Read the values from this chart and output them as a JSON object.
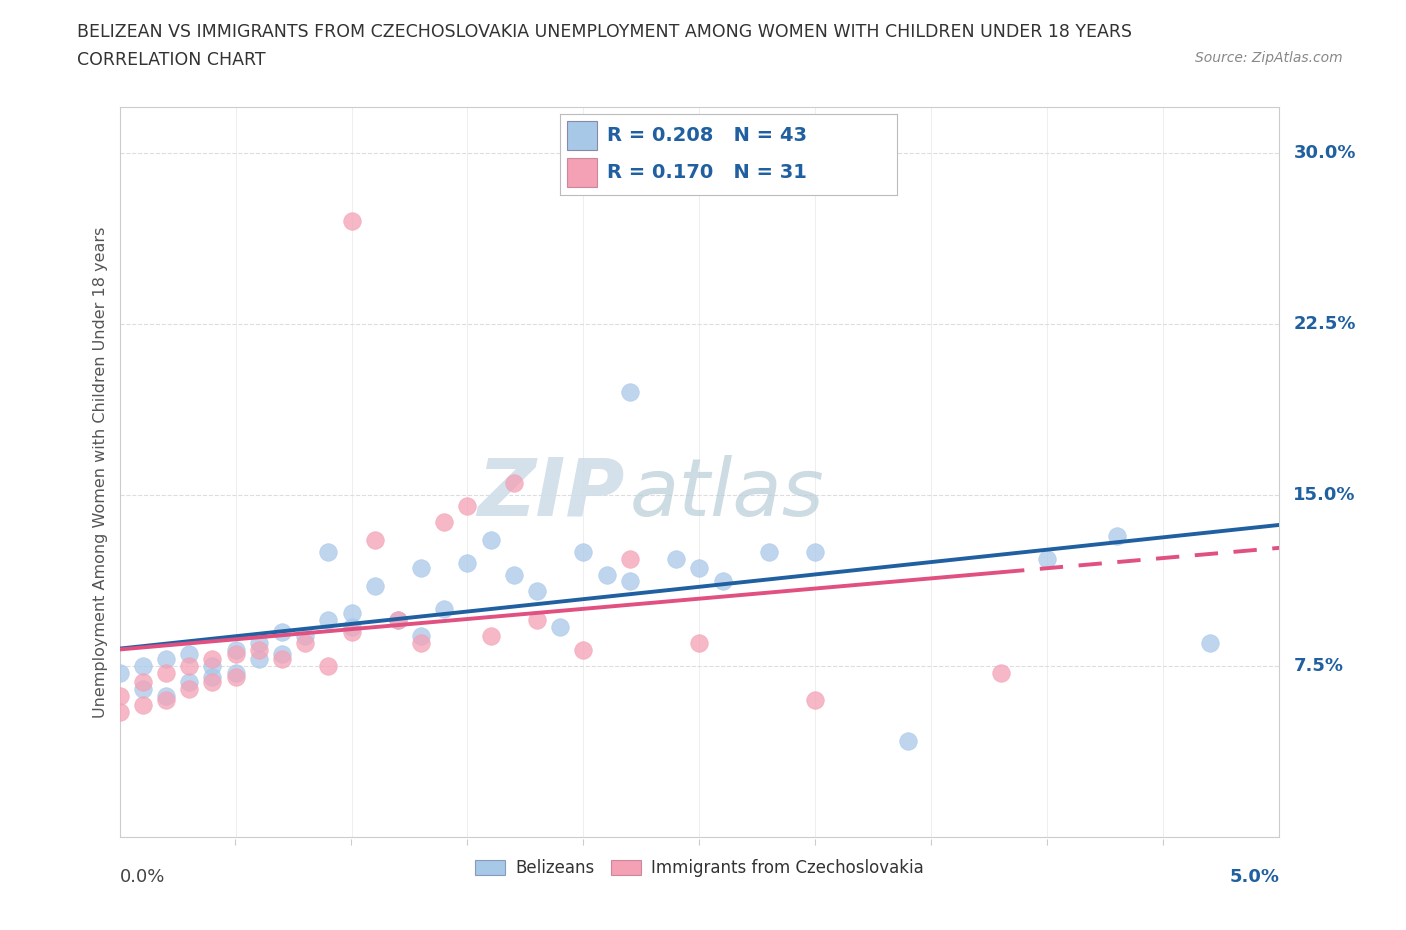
{
  "title_line1": "BELIZEAN VS IMMIGRANTS FROM CZECHOSLOVAKIA UNEMPLOYMENT AMONG WOMEN WITH CHILDREN UNDER 18 YEARS",
  "title_line2": "CORRELATION CHART",
  "source": "Source: ZipAtlas.com",
  "ylabel": "Unemployment Among Women with Children Under 18 years",
  "legend1_label": "Belizeans",
  "legend2_label": "Immigrants from Czechoslovakia",
  "R_blue": 0.208,
  "N_blue": 43,
  "R_pink": 0.17,
  "N_pink": 31,
  "blue_color": "#a8c8e8",
  "pink_color": "#f4a0b5",
  "blue_line_color": "#2060a0",
  "pink_line_color": "#e05080",
  "watermark_color": "#d8e8f0",
  "xlim": [
    0.0,
    0.05
  ],
  "ylim": [
    0.0,
    0.32
  ],
  "yticks": [
    0.0,
    0.075,
    0.15,
    0.225,
    0.3
  ],
  "ytick_labels": [
    "",
    "7.5%",
    "15.0%",
    "22.5%",
    "30.0%"
  ],
  "xtick_left_label": "0.0%",
  "xtick_right_label": "5.0%",
  "blue_x": [
    0.0,
    0.001,
    0.001,
    0.002,
    0.002,
    0.003,
    0.003,
    0.004,
    0.004,
    0.005,
    0.005,
    0.006,
    0.006,
    0.007,
    0.007,
    0.008,
    0.009,
    0.009,
    0.01,
    0.01,
    0.011,
    0.012,
    0.013,
    0.013,
    0.014,
    0.015,
    0.016,
    0.017,
    0.018,
    0.019,
    0.02,
    0.021,
    0.022,
    0.024,
    0.025,
    0.026,
    0.028,
    0.03,
    0.034,
    0.04,
    0.043,
    0.047,
    0.022
  ],
  "blue_y": [
    0.072,
    0.075,
    0.065,
    0.078,
    0.062,
    0.08,
    0.068,
    0.075,
    0.07,
    0.082,
    0.072,
    0.085,
    0.078,
    0.08,
    0.09,
    0.088,
    0.125,
    0.095,
    0.092,
    0.098,
    0.11,
    0.095,
    0.118,
    0.088,
    0.1,
    0.12,
    0.13,
    0.115,
    0.108,
    0.092,
    0.125,
    0.115,
    0.112,
    0.122,
    0.118,
    0.112,
    0.125,
    0.125,
    0.042,
    0.122,
    0.132,
    0.085,
    0.195
  ],
  "pink_x": [
    0.0,
    0.0,
    0.001,
    0.001,
    0.002,
    0.002,
    0.003,
    0.003,
    0.004,
    0.004,
    0.005,
    0.005,
    0.006,
    0.007,
    0.008,
    0.009,
    0.01,
    0.011,
    0.012,
    0.013,
    0.014,
    0.015,
    0.016,
    0.017,
    0.018,
    0.02,
    0.022,
    0.025,
    0.03,
    0.038,
    0.01
  ],
  "pink_y": [
    0.062,
    0.055,
    0.068,
    0.058,
    0.072,
    0.06,
    0.075,
    0.065,
    0.078,
    0.068,
    0.08,
    0.07,
    0.082,
    0.078,
    0.085,
    0.075,
    0.09,
    0.13,
    0.095,
    0.085,
    0.138,
    0.145,
    0.088,
    0.155,
    0.095,
    0.082,
    0.122,
    0.085,
    0.06,
    0.072,
    0.27
  ],
  "grid_color": "#dddddd",
  "bg_color": "#ffffff",
  "spine_color": "#cccccc"
}
